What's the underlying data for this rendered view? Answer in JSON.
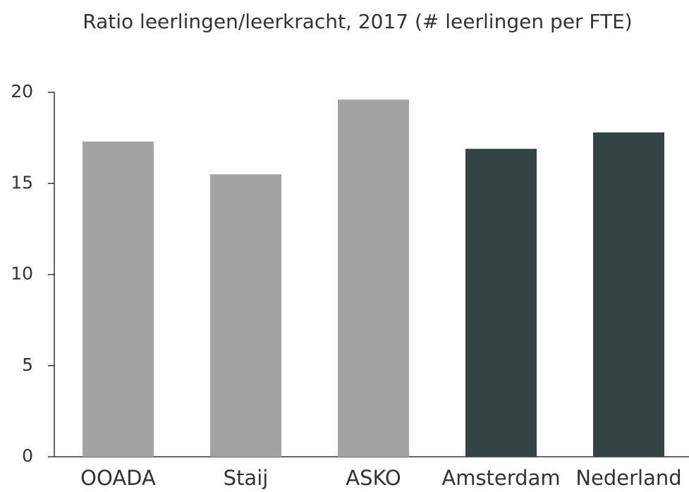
{
  "chart_data": {
    "type": "bar",
    "title": "Ratio leerlingen/leerkracht, 2017 (# leerlingen per FTE)",
    "categories": [
      "OOADA",
      "Staij",
      "ASKO",
      "Amsterdam",
      "Nederland"
    ],
    "values": [
      17.3,
      15.5,
      19.6,
      16.9,
      17.8
    ],
    "colors": [
      "#a3a3a3",
      "#a3a3a3",
      "#a3a3a3",
      "#344444",
      "#344444"
    ],
    "ylim": [
      0,
      20
    ],
    "yticks": [
      0,
      5,
      10,
      15,
      20
    ],
    "grid": false
  }
}
